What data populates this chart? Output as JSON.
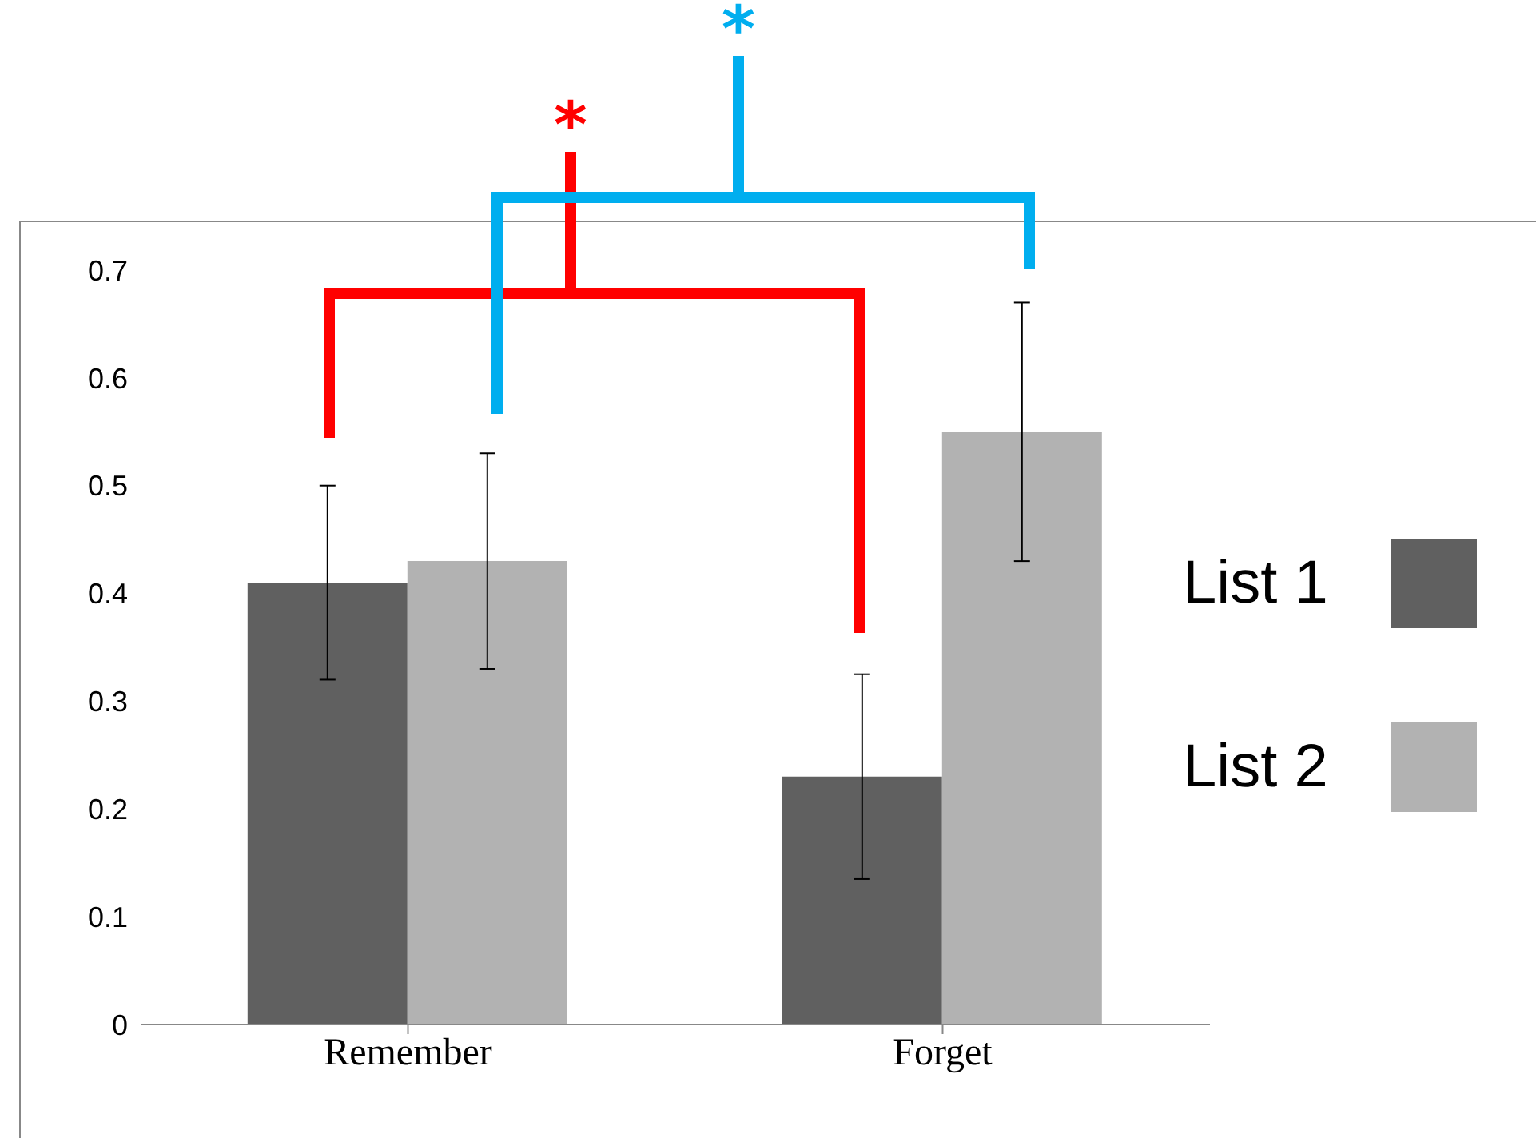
{
  "chart_data": {
    "type": "bar",
    "categories": [
      "Remember",
      "Forget"
    ],
    "series": [
      {
        "name": "List 1",
        "color": "#606060",
        "values": [
          0.41,
          0.23
        ],
        "errors": [
          0.09,
          0.095
        ]
      },
      {
        "name": "List 2",
        "color": "#b2b2b2",
        "values": [
          0.43,
          0.55
        ],
        "errors": [
          0.1,
          0.12
        ]
      }
    ],
    "ylim": [
      0,
      0.7
    ],
    "yticks": [
      0,
      0.1,
      0.2,
      0.3,
      0.4,
      0.5,
      0.6,
      0.7
    ],
    "grid": false,
    "legend": "right",
    "annotations": [
      "*",
      "*"
    ]
  }
}
